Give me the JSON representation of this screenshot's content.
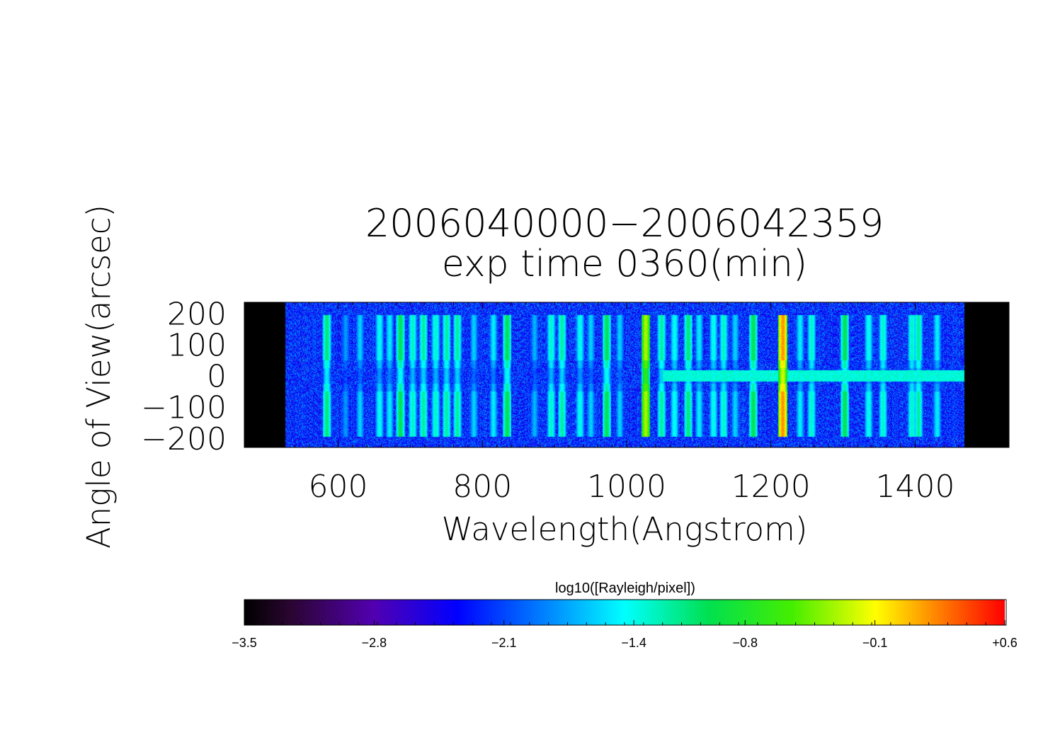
{
  "chart_data": {
    "type": "heatmap",
    "title": "2006040000−2006042359",
    "subtitle": "exp time 0360(min)",
    "xlabel": "Wavelength(Angstrom)",
    "ylabel": "Angle of View(arcsec)",
    "xlim": [
      470,
      1530
    ],
    "ylim": [
      -230,
      235
    ],
    "x_ticks": [
      600,
      800,
      1000,
      1200,
      1400
    ],
    "x_tick_labels": [
      "600",
      "800",
      "1000",
      "1200",
      "1400"
    ],
    "y_ticks": [
      200,
      100,
      0,
      -100,
      -200
    ],
    "y_tick_labels": [
      "200",
      "100",
      "0",
      "−100",
      "−200"
    ],
    "data_extent_x": [
      526,
      1468
    ],
    "background_level": -2.2,
    "colorbar": {
      "label": "log10([Rayleigh/pixel])",
      "range": [
        -3.5,
        0.6
      ],
      "tick_values": [
        -3.5,
        -2.8,
        -2.1,
        -1.4,
        -0.8,
        -0.1,
        0.6
      ],
      "tick_labels": [
        "−3.5",
        "−2.8",
        "−2.1",
        "−1.4",
        "−0.8",
        "−0.1",
        "+0.6"
      ]
    },
    "emission_lines": [
      {
        "wavelength": 584,
        "peak": -1.1
      },
      {
        "wavelength": 610,
        "peak": -1.8
      },
      {
        "wavelength": 630,
        "peak": -1.6
      },
      {
        "wavelength": 657,
        "peak": -1.4
      },
      {
        "wavelength": 671,
        "peak": -1.5
      },
      {
        "wavelength": 686,
        "peak": -1.0
      },
      {
        "wavelength": 703,
        "peak": -1.3
      },
      {
        "wavelength": 718,
        "peak": -1.2
      },
      {
        "wavelength": 735,
        "peak": -1.3
      },
      {
        "wavelength": 750,
        "peak": -1.2
      },
      {
        "wavelength": 765,
        "peak": -1.2
      },
      {
        "wavelength": 788,
        "peak": -1.6
      },
      {
        "wavelength": 815,
        "peak": -1.5
      },
      {
        "wavelength": 834,
        "peak": -1.0
      },
      {
        "wavelength": 872,
        "peak": -1.7
      },
      {
        "wavelength": 895,
        "peak": -1.3
      },
      {
        "wavelength": 910,
        "peak": -1.2
      },
      {
        "wavelength": 935,
        "peak": -1.4
      },
      {
        "wavelength": 950,
        "peak": -1.6
      },
      {
        "wavelength": 972,
        "peak": -1.0
      },
      {
        "wavelength": 990,
        "peak": -1.6
      },
      {
        "wavelength": 1026,
        "peak": -0.3
      },
      {
        "wavelength": 1048,
        "peak": -1.2
      },
      {
        "wavelength": 1066,
        "peak": -1.4
      },
      {
        "wavelength": 1085,
        "peak": -1.1
      },
      {
        "wavelength": 1100,
        "peak": -1.5
      },
      {
        "wavelength": 1120,
        "peak": -1.4
      },
      {
        "wavelength": 1134,
        "peak": -1.3
      },
      {
        "wavelength": 1150,
        "peak": -1.6
      },
      {
        "wavelength": 1175,
        "peak": -1.0
      },
      {
        "wavelength": 1216,
        "peak": 0.2
      },
      {
        "wavelength": 1240,
        "peak": -1.5
      },
      {
        "wavelength": 1256,
        "peak": -1.3
      },
      {
        "wavelength": 1302,
        "peak": -1.0
      },
      {
        "wavelength": 1335,
        "peak": -1.4
      },
      {
        "wavelength": 1355,
        "peak": -1.3
      },
      {
        "wavelength": 1395,
        "peak": -1.3
      },
      {
        "wavelength": 1404,
        "peak": -1.2
      },
      {
        "wavelength": 1430,
        "peak": -1.5
      }
    ]
  }
}
